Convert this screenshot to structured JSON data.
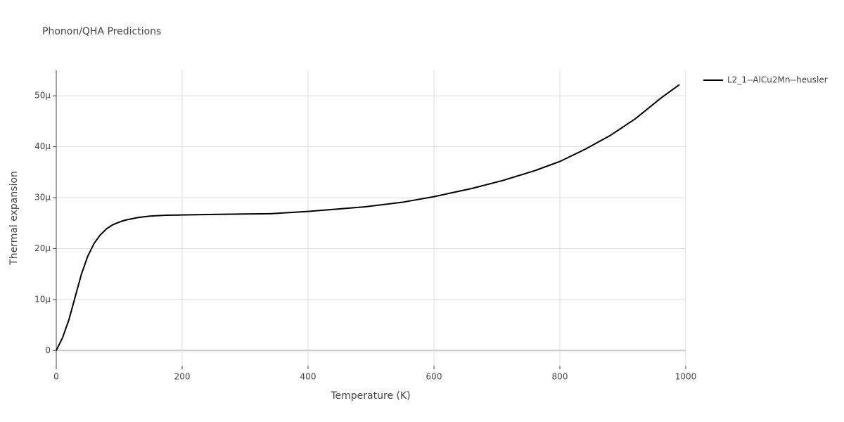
{
  "chart_data": {
    "type": "line",
    "title": "Phonon/QHA Predictions",
    "xlabel": "Temperature (K)",
    "ylabel": "Thermal expansion",
    "x": [
      0,
      10,
      20,
      30,
      40,
      50,
      60,
      70,
      80,
      90,
      100,
      110,
      130,
      150,
      175,
      200,
      250,
      300,
      340,
      400,
      450,
      490,
      550,
      600,
      660,
      710,
      760,
      800,
      840,
      880,
      920,
      960,
      990
    ],
    "series": [
      {
        "name": "L2_1--AlCu2Mn--heusler",
        "color": "#000000",
        "values": [
          0,
          2.5e-06,
          6e-06,
          1.05e-05,
          1.5e-05,
          1.85e-05,
          2.1e-05,
          2.27e-05,
          2.39e-05,
          2.47e-05,
          2.52e-05,
          2.56e-05,
          2.61e-05,
          2.64e-05,
          2.655e-05,
          2.66e-05,
          2.67e-05,
          2.68e-05,
          2.685e-05,
          2.73e-05,
          2.78e-05,
          2.82e-05,
          2.91e-05,
          3.02e-05,
          3.18e-05,
          3.34e-05,
          3.53e-05,
          3.71e-05,
          3.95e-05,
          4.22e-05,
          4.55e-05,
          4.95e-05,
          5.22e-05
        ]
      }
    ],
    "xlim": [
      0,
      1000
    ],
    "xticks": [
      0,
      200,
      400,
      600,
      800,
      1000
    ],
    "ylim": [
      -3e-06,
      5.5e-05
    ],
    "yticks": [
      0,
      {
        "value": 1e-05,
        "label": "10µ"
      },
      {
        "value": 2e-05,
        "label": "20µ"
      },
      {
        "value": 3e-05,
        "label": "30µ"
      },
      {
        "value": 4e-05,
        "label": "40µ"
      },
      {
        "value": 5e-05,
        "label": "50µ"
      }
    ],
    "grid": true,
    "legend": "top-right"
  }
}
